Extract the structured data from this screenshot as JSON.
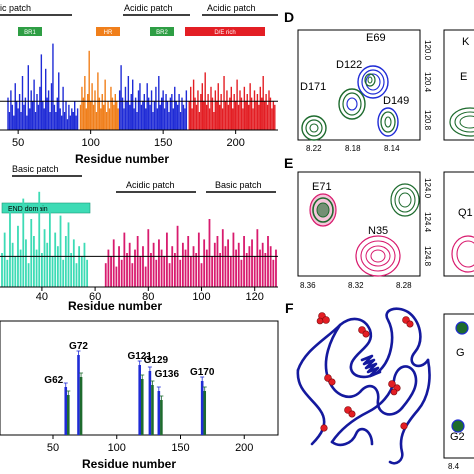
{
  "panel_top": {
    "patch_labels": [
      "ic patch",
      "Acidic patch",
      "Acidic patch"
    ],
    "domain_boxes": [
      {
        "label": "BR1",
        "color": "#2e9e44"
      },
      {
        "label": "HR",
        "color": "#f07f1b"
      },
      {
        "label": "BR2",
        "color": "#2e9e44"
      },
      {
        "label": "D/E rich",
        "color": "#e31e24"
      }
    ],
    "x_ticks": [
      "50",
      "100",
      "150",
      "200"
    ],
    "xlabel": "Residue number"
  },
  "panel_middle": {
    "patch_labels": [
      "Basic patch",
      "Acidic patch",
      "Basic patch"
    ],
    "domain_box": {
      "label": "END domain",
      "color": "#3ddbb5"
    },
    "x_ticks": [
      "40",
      "60",
      "80",
      "100",
      "120"
    ],
    "xlabel": "Residue number"
  },
  "panel_bottom": {
    "peak_labels": [
      "G62",
      "G72",
      "G121",
      "G129",
      "G136",
      "G170"
    ],
    "x_ticks": [
      "50",
      "100",
      "150",
      "200"
    ],
    "xlabel": "Residue number"
  },
  "panel_letters": [
    "D",
    "E",
    "F"
  ],
  "nmr_D": {
    "peaks": [
      "E69",
      "D122",
      "D171",
      "D149"
    ],
    "x_ticks": [
      "8.22",
      "8.18",
      "8.14"
    ],
    "y_ticks": [
      "120.0",
      "120.4",
      "120.8"
    ],
    "side_labels": [
      "K",
      "E"
    ]
  },
  "nmr_E": {
    "peaks": [
      "E71",
      "N35"
    ],
    "x_ticks": [
      "8.36",
      "8.32",
      "8.28"
    ],
    "y_ticks": [
      "124.0",
      "124.4",
      "124.8"
    ],
    "side_labels": [
      "Q1"
    ]
  },
  "panel_F": {
    "side_labels": [
      "G",
      "G2"
    ],
    "side_tick": "8.4"
  },
  "colors": {
    "blue": "#1f2bd6",
    "orange": "#f07f1b",
    "red": "#e31e24",
    "green": "#1e6b2e",
    "teal": "#3ddbb5",
    "pink": "#d81b6e",
    "navy": "#14199e"
  },
  "chart_data": [
    {
      "type": "bar",
      "series": [
        {
          "name": "",
          "color": "#1f2bd6",
          "x": [
            43,
            44,
            45,
            46,
            47,
            48,
            49,
            50,
            51,
            52,
            53,
            54,
            55,
            56,
            57,
            58,
            59,
            60,
            61,
            62,
            63,
            64,
            65,
            66,
            67,
            68,
            69,
            70,
            71,
            72,
            73,
            74,
            75,
            76,
            77,
            78,
            79,
            80,
            81,
            82,
            83,
            84,
            85,
            86,
            87,
            88,
            89,
            90,
            91
          ],
          "values": [
            0.9,
            0.5,
            1.1,
            0.7,
            0.4,
            1.3,
            0.8,
            0.6,
            1.0,
            0.5,
            1.5,
            0.7,
            0.9,
            0.4,
            1.8,
            0.6,
            1.1,
            0.8,
            1.4,
            0.5,
            1.0,
            0.7,
            1.2,
            2.1,
            0.8,
            0.6,
            1.7,
            0.9,
            1.1,
            0.5,
            1.3,
            2.4,
            0.7,
            0.5,
            0.9,
            1.6,
            0.6,
            0.4,
            1.2,
            0.5,
            0.8,
            0.3,
            0.7,
            0.4,
            0.6,
            0.5,
            0.8,
            0.4,
            0.6
          ]
        },
        {
          "name": "",
          "color": "#f07f1b",
          "x": [
            93,
            94,
            95,
            96,
            97,
            98,
            99,
            100,
            101,
            102,
            103,
            104,
            105,
            106,
            107,
            108,
            109,
            110,
            111,
            112,
            113,
            114,
            115,
            116,
            117,
            118,
            119
          ],
          "values": [
            0.7,
            1.2,
            0.9,
            1.5,
            0.6,
            1.0,
            2.2,
            0.8,
            1.3,
            0.7,
            1.1,
            0.5,
            1.6,
            0.9,
            0.6,
            1.0,
            0.7,
            1.4,
            0.5,
            0.8,
            0.6,
            1.2,
            0.9,
            0.7,
            1.0,
            0.8,
            0.6
          ]
        },
        {
          "name": "",
          "color": "#1f2bd6",
          "x": [
            120,
            121,
            122,
            123,
            124,
            125,
            126,
            127,
            128,
            129,
            130,
            131,
            132,
            133,
            134,
            135,
            136,
            137,
            138,
            139,
            140,
            141,
            142,
            143,
            144,
            145,
            146,
            147,
            148,
            149,
            150,
            151,
            152,
            153,
            154,
            155,
            156,
            157,
            158,
            159,
            160,
            161,
            162,
            163,
            164,
            165,
            166
          ],
          "values": [
            1.1,
            1.8,
            0.9,
            0.6,
            1.2,
            0.8,
            1.5,
            0.7,
            1.0,
            1.4,
            0.6,
            0.9,
            0.5,
            1.1,
            1.3,
            0.7,
            0.8,
            1.0,
            0.6,
            1.3,
            0.9,
            0.7,
            1.1,
            0.5,
            0.8,
            1.2,
            0.6,
            1.5,
            0.7,
            0.9,
            1.1,
            0.6,
            1.0,
            0.8,
            0.5,
            0.9,
            1.0,
            0.6,
            1.2,
            0.8,
            0.7,
            1.0,
            0.5,
            0.9,
            0.7,
            0.6,
            1.1
          ]
        },
        {
          "name": "",
          "color": "#e31e24",
          "x": [
            168,
            169,
            170,
            171,
            172,
            173,
            174,
            175,
            176,
            177,
            178,
            179,
            180,
            181,
            182,
            183,
            184,
            185,
            186,
            187,
            188,
            189,
            190,
            191,
            192,
            193,
            194,
            195,
            196,
            197,
            198,
            199,
            200,
            201,
            202,
            203,
            204,
            205,
            206,
            207,
            208,
            209,
            210,
            211,
            212,
            213,
            214,
            215,
            216,
            217,
            218,
            219,
            220,
            221,
            222,
            223,
            224,
            225,
            226,
            227
          ],
          "values": [
            0.8,
            1.2,
            0.6,
            1.4,
            0.9,
            0.7,
            1.1,
            0.5,
            1.0,
            1.3,
            0.8,
            1.6,
            0.7,
            1.0,
            0.6,
            1.2,
            0.9,
            0.5,
            1.1,
            0.8,
            1.3,
            0.7,
            1.0,
            0.6,
            1.5,
            0.8,
            1.1,
            0.7,
            0.9,
            1.2,
            0.6,
            1.0,
            0.8,
            1.4,
            0.7,
            1.1,
            0.9,
            0.6,
            1.2,
            0.8,
            1.0,
            0.7,
            1.3,
            0.9,
            0.6,
            1.1,
            0.8,
            1.0,
            0.7,
            1.2,
            0.9,
            1.5,
            0.8,
            1.0,
            0.7,
            1.1,
            0.9,
            0.6,
            0.8,
            0.7
          ]
        }
      ],
      "hline": 0.8
    },
    {
      "type": "bar",
      "series": [
        {
          "name": "",
          "color": "#3ddbb5",
          "x": [
            25,
            26,
            27,
            28,
            29,
            30,
            31,
            32,
            33,
            34,
            35,
            36,
            37,
            38,
            39,
            40,
            41,
            42,
            43,
            44,
            45,
            46,
            47,
            48,
            49,
            50,
            51,
            52,
            53,
            54,
            55,
            56,
            57
          ],
          "values": [
            1.0,
            1.6,
            0.8,
            2.2,
            1.3,
            0.9,
            1.8,
            1.1,
            2.6,
            1.4,
            0.7,
            2.0,
            1.5,
            1.1,
            2.8,
            1.0,
            1.7,
            1.3,
            2.3,
            0.9,
            1.6,
            1.2,
            2.1,
            0.8,
            1.5,
            1.9,
            1.0,
            1.4,
            0.7,
            1.2,
            0.9,
            1.3,
            0.8
          ]
        },
        {
          "name": "",
          "color": "#d81b6e",
          "x": [
            64,
            65,
            66,
            67,
            68,
            69,
            70,
            71,
            72,
            73,
            74,
            75,
            76,
            77,
            78,
            79,
            80,
            81,
            82,
            83,
            84,
            85,
            86,
            87,
            88,
            89,
            90,
            91,
            92,
            93,
            94,
            95,
            96,
            97,
            98,
            99,
            100,
            101,
            102,
            103,
            104,
            105,
            106,
            107,
            108,
            109,
            110,
            111,
            112,
            113,
            114,
            115,
            116,
            117,
            118,
            119,
            120,
            121,
            122,
            123,
            124,
            125,
            126,
            127,
            128
          ],
          "values": [
            0.7,
            1.1,
            0.9,
            1.4,
            0.6,
            1.2,
            0.8,
            1.6,
            1.0,
            1.3,
            0.7,
            1.1,
            1.5,
            0.9,
            1.2,
            0.6,
            1.7,
            1.0,
            1.3,
            0.8,
            1.4,
            1.1,
            0.9,
            1.6,
            0.7,
            1.2,
            1.0,
            1.8,
            0.8,
            1.3,
            1.1,
            1.5,
            0.9,
            1.2,
            1.0,
            1.6,
            0.7,
            1.4,
            1.1,
            2.0,
            0.9,
            1.3,
            1.5,
            1.0,
            1.7,
            1.2,
            1.4,
            0.9,
            1.6,
            1.1,
            1.3,
            0.8,
            1.5,
            1.0,
            1.2,
            1.4,
            0.9,
            1.7,
            1.1,
            1.3,
            1.0,
            1.5,
            1.2,
            0.8,
            1.1
          ]
        }
      ],
      "hline": 0.9
    },
    {
      "type": "bar",
      "series": [
        {
          "name": "",
          "color": "#1f2bd6",
          "x": [
            60,
            70,
            118,
            126,
            133,
            167
          ],
          "values": [
            0.48,
            0.8,
            0.7,
            0.64,
            0.44,
            0.54
          ]
        },
        {
          "name": "",
          "color": "#1e6b2e",
          "x": [
            62,
            72,
            120,
            128,
            135,
            169
          ],
          "values": [
            0.4,
            0.58,
            0.56,
            0.5,
            0.35,
            0.44
          ]
        }
      ]
    }
  ]
}
